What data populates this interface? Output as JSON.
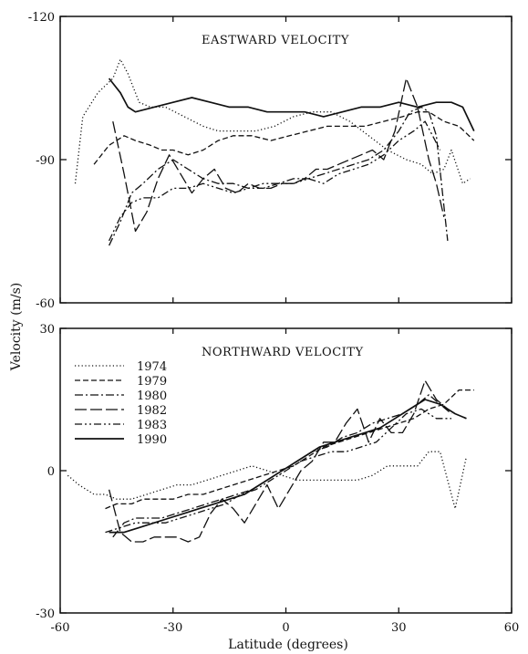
{
  "figure": {
    "ylabel": "Velocity (m/s)",
    "xlabel": "Latitude (degrees)"
  },
  "chart_data": [
    {
      "type": "line",
      "title": "EASTWARD VELOCITY",
      "xlabel": "Latitude (degrees)",
      "ylabel": "Velocity (m/s)",
      "xlim": [
        -60,
        60
      ],
      "ylim": [
        -120,
        -60
      ],
      "y_inverted": true,
      "x_ticks": [
        "-60",
        "-30",
        "0",
        "30",
        "60"
      ],
      "y_ticks": [
        "-120",
        "-90",
        "-60"
      ],
      "grid": false,
      "series": [
        {
          "name": "1974",
          "style": "dotted",
          "x": [
            -56,
            -54,
            -50,
            -46,
            -44,
            -42,
            -39,
            -36,
            -32,
            -27,
            -22,
            -18,
            -13,
            -8,
            -3,
            2,
            7,
            12,
            17,
            22,
            27,
            32,
            36,
            39,
            42,
            44,
            47,
            49
          ],
          "y": [
            -85,
            -99,
            -104,
            -107,
            -111,
            -108,
            -102,
            -101,
            -101,
            -99,
            -97,
            -96,
            -96,
            -96,
            -97,
            -99,
            -100,
            -100,
            -98,
            -95,
            -92,
            -90,
            -89,
            -87,
            -88,
            -92,
            -85,
            -86
          ]
        },
        {
          "name": "1979",
          "style": "dashed",
          "x": [
            -51,
            -47,
            -43,
            -40,
            -36,
            -33,
            -30,
            -26,
            -22,
            -18,
            -14,
            -9,
            -4,
            1,
            6,
            11,
            16,
            21,
            26,
            31,
            35,
            38,
            40,
            42,
            46,
            50
          ],
          "y": [
            -89,
            -93,
            -95,
            -94,
            -93,
            -92,
            -92,
            -91,
            -92,
            -94,
            -95,
            -95,
            -94,
            -95,
            -96,
            -97,
            -97,
            -97,
            -98,
            -99,
            -100,
            -100,
            -99,
            -98,
            -97,
            -94
          ]
        },
        {
          "name": "1980",
          "style": "dashdot",
          "x": [
            -47,
            -44,
            -41,
            -38,
            -34,
            -30,
            -26,
            -22,
            -18,
            -14,
            -10,
            -6,
            -2,
            2,
            6,
            10,
            14,
            18,
            22,
            26,
            30,
            33,
            36,
            38,
            40,
            43
          ],
          "y": [
            -72,
            -77,
            -83,
            -85,
            -88,
            -90,
            -88,
            -86,
            -85,
            -85,
            -84,
            -84,
            -85,
            -86,
            -86,
            -87,
            -88,
            -89,
            -90,
            -92,
            -96,
            -100,
            -101,
            -100,
            -95,
            -73
          ]
        },
        {
          "name": "1982",
          "style": "longdash",
          "x": [
            -46,
            -43,
            -40,
            -37,
            -34,
            -31,
            -28,
            -25,
            -22,
            -19,
            -16,
            -13,
            -10,
            -7,
            -4,
            -1,
            2,
            5,
            8,
            11,
            14,
            17,
            20,
            23,
            26,
            29,
            32,
            35,
            38,
            40,
            42
          ],
          "y": [
            -98,
            -87,
            -75,
            -79,
            -86,
            -91,
            -87,
            -83,
            -86,
            -88,
            -84,
            -83,
            -85,
            -84,
            -84,
            -85,
            -85,
            -86,
            -88,
            -88,
            -89,
            -90,
            -91,
            -92,
            -90,
            -96,
            -107,
            -101,
            -90,
            -85,
            -78
          ]
        },
        {
          "name": "1983",
          "style": "dashdotdot",
          "x": [
            -47,
            -44,
            -41,
            -38,
            -34,
            -30,
            -26,
            -22,
            -18,
            -14,
            -10,
            -6,
            -2,
            2,
            6,
            10,
            14,
            18,
            22,
            26,
            30,
            34,
            37,
            39,
            41
          ],
          "y": [
            -73,
            -78,
            -81,
            -82,
            -82,
            -84,
            -84,
            -85,
            -84,
            -83,
            -84,
            -85,
            -85,
            -85,
            -86,
            -85,
            -87,
            -88,
            -89,
            -91,
            -94,
            -96,
            -98,
            -95,
            -92
          ]
        },
        {
          "name": "1990",
          "style": "solid",
          "x": [
            -47,
            -44,
            -42,
            -40,
            -35,
            -30,
            -25,
            -20,
            -15,
            -10,
            -5,
            0,
            5,
            10,
            15,
            20,
            25,
            30,
            35,
            40,
            44,
            47,
            50
          ],
          "y": [
            -107,
            -104,
            -101,
            -100,
            -101,
            -102,
            -103,
            -102,
            -101,
            -101,
            -100,
            -100,
            -100,
            -99,
            -100,
            -101,
            -101,
            -102,
            -101,
            -102,
            -102,
            -101,
            -96
          ]
        }
      ]
    },
    {
      "type": "line",
      "title": "NORTHWARD VELOCITY",
      "xlabel": "Latitude (degrees)",
      "ylabel": "Velocity (m/s)",
      "xlim": [
        -60,
        60
      ],
      "ylim": [
        -30,
        30
      ],
      "x_ticks": [
        "-60",
        "-30",
        "0",
        "30",
        "60"
      ],
      "y_ticks": [
        "30",
        "0",
        "-30"
      ],
      "grid": false,
      "legend_position": "upper-left",
      "series": [
        {
          "name": "1974",
          "style": "dotted",
          "x": [
            -58,
            -55,
            -51,
            -48,
            -45,
            -41,
            -37,
            -33,
            -29,
            -25,
            -21,
            -17,
            -13,
            -9,
            -5,
            -1,
            3,
            7,
            11,
            15,
            19,
            23,
            27,
            31,
            35,
            38,
            41,
            45,
            48
          ],
          "y": [
            -1,
            -3,
            -5,
            -5,
            -6,
            -6,
            -5,
            -4,
            -3,
            -3,
            -2,
            -1,
            0,
            1,
            0,
            -1,
            -2,
            -2,
            -2,
            -2,
            -2,
            -1,
            1,
            1,
            1,
            4,
            4,
            -8,
            3
          ]
        },
        {
          "name": "1979",
          "style": "dashed",
          "x": [
            -48,
            -45,
            -41,
            -38,
            -34,
            -30,
            -26,
            -22,
            -18,
            -14,
            -10,
            -6,
            -2,
            2,
            6,
            10,
            14,
            18,
            22,
            26,
            30,
            34,
            38,
            42,
            46,
            50
          ],
          "y": [
            -8,
            -7,
            -7,
            -6,
            -6,
            -6,
            -5,
            -5,
            -4,
            -3,
            -2,
            -1,
            0,
            1,
            3,
            5,
            6,
            7,
            8,
            9,
            10,
            11,
            13,
            14,
            17,
            17
          ]
        },
        {
          "name": "1980",
          "style": "dashdot",
          "x": [
            -46,
            -43,
            -40,
            -37,
            -33,
            -29,
            -25,
            -21,
            -17,
            -13,
            -9,
            -5,
            -1,
            3,
            7,
            11,
            15,
            19,
            23,
            27,
            31,
            35,
            38,
            41,
            44
          ],
          "y": [
            -14,
            -11,
            -10,
            -10,
            -10,
            -9,
            -8,
            -7,
            -6,
            -5,
            -4,
            -2,
            0,
            2,
            4,
            5,
            7,
            8,
            10,
            11,
            12,
            14,
            16,
            14,
            12
          ]
        },
        {
          "name": "1982",
          "style": "longdash",
          "x": [
            -47,
            -44,
            -41,
            -38,
            -35,
            -32,
            -29,
            -26,
            -23,
            -20,
            -17,
            -14,
            -11,
            -8,
            -5,
            -2,
            1,
            4,
            7,
            10,
            13,
            16,
            19,
            22,
            25,
            28,
            31,
            34,
            37,
            40,
            43
          ],
          "y": [
            -4,
            -13,
            -15,
            -15,
            -14,
            -14,
            -14,
            -15,
            -14,
            -9,
            -6,
            -8,
            -11,
            -7,
            -3,
            -8,
            -4,
            0,
            2,
            6,
            6,
            10,
            13,
            6,
            11,
            8,
            8,
            12,
            19,
            15,
            13
          ]
        },
        {
          "name": "1983",
          "style": "dashdotdot",
          "x": [
            -48,
            -44,
            -40,
            -36,
            -32,
            -28,
            -24,
            -20,
            -16,
            -12,
            -8,
            -4,
            0,
            4,
            8,
            12,
            16,
            20,
            24,
            28,
            32,
            36,
            40,
            44
          ],
          "y": [
            -13,
            -12,
            -11,
            -11,
            -11,
            -10,
            -9,
            -8,
            -7,
            -5,
            -4,
            -2,
            0,
            2,
            3,
            4,
            4,
            5,
            6,
            9,
            12,
            13,
            11,
            11
          ]
        },
        {
          "name": "1990",
          "style": "solid",
          "x": [
            -47,
            -43,
            -39,
            -35,
            -31,
            -27,
            -23,
            -19,
            -15,
            -11,
            -7,
            -3,
            1,
            5,
            9,
            13,
            17,
            21,
            25,
            29,
            33,
            37,
            41,
            45,
            48
          ],
          "y": [
            -13,
            -13,
            -12,
            -11,
            -10,
            -9,
            -8,
            -7,
            -6,
            -5,
            -3,
            -1,
            1,
            3,
            5,
            6,
            7,
            8,
            9,
            11,
            13,
            15,
            14,
            12,
            11
          ]
        }
      ]
    }
  ]
}
